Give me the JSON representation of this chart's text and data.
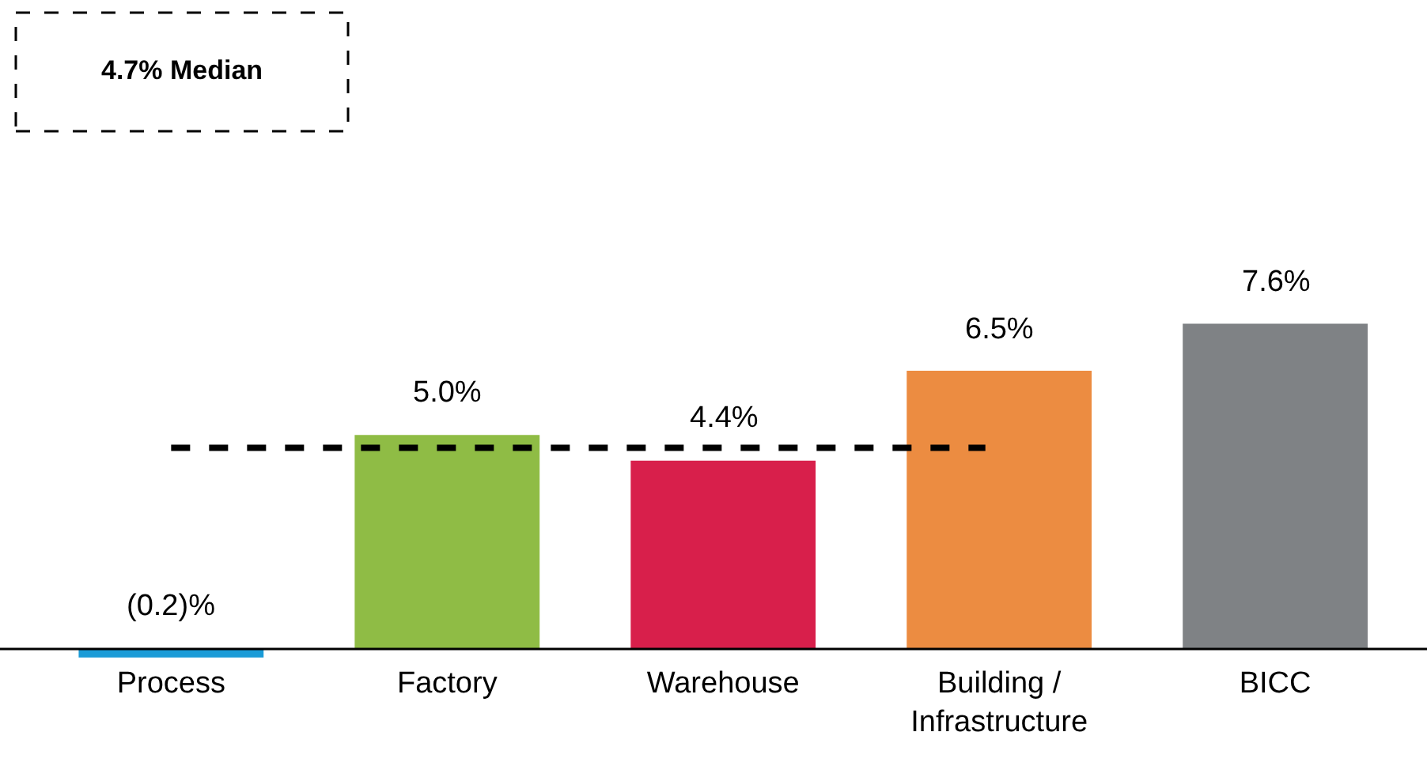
{
  "chart_data": {
    "type": "bar",
    "categories": [
      "Process",
      "Factory",
      "Warehouse",
      "Building /\nInfrastructure",
      "BICC"
    ],
    "values": [
      -0.2,
      5.0,
      4.4,
      6.5,
      7.6
    ],
    "colors": [
      "#1a9bd7",
      "#8fbc45",
      "#d81f4b",
      "#ec8c41",
      "#7f8285"
    ],
    "value_labels": [
      "(0.2)%",
      "5.0%",
      "4.4%",
      "6.5%",
      "7.6%"
    ],
    "ref_lines": [
      {
        "axis": "y",
        "value": 4.7,
        "label": "4.7% Median",
        "color": "#000000",
        "line_style": "dashed"
      }
    ]
  }
}
